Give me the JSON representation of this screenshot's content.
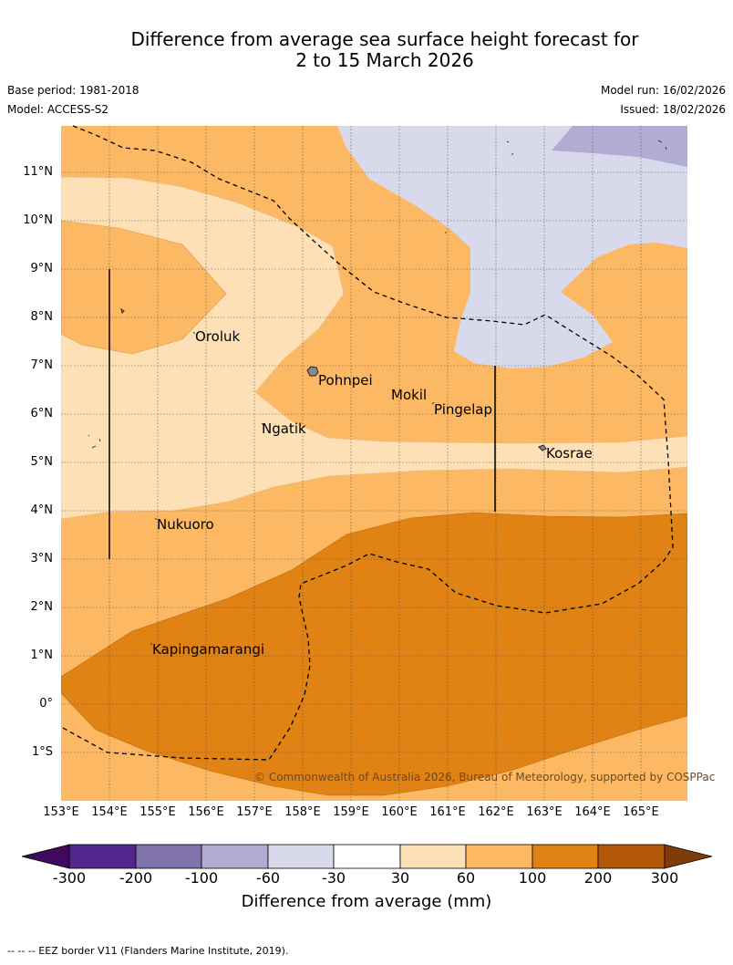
{
  "title_line1": "Difference from average sea surface height forecast for",
  "title_line2": "2 to 15 March 2026",
  "base_period": "Base period: 1981-2018",
  "model": "Model: ACCESS-S2",
  "model_run": "Model run: 16/02/2026",
  "issued": "Issued: 18/02/2026",
  "copyright": "© Commonwealth of Australia 2026, Bureau of Meteorology, supported by COSPPac",
  "lat_labels": [
    "11°N",
    "10°N",
    "9°N",
    "8°N",
    "7°N",
    "6°N",
    "5°N",
    "4°N",
    "3°N",
    "2°N",
    "1°N",
    "0°",
    "1°S"
  ],
  "lon_labels": [
    "153°E",
    "154°E",
    "155°E",
    "156°E",
    "157°E",
    "158°E",
    "159°E",
    "160°E",
    "161°E",
    "162°E",
    "163°E",
    "164°E",
    "165°E"
  ],
  "places": {
    "oroluk": "Oroluk",
    "pohnpei": "Pohnpei",
    "mokil": "Mokil",
    "pingelap": "Pingelap",
    "ngatik": "Ngatik",
    "kosrae": "Kosrae",
    "nukuoro": "Nukuoro",
    "kapingamarangi": "Kapingamarangi"
  },
  "colorbar": {
    "ticks": [
      "-300",
      "-200",
      "-100",
      "-60",
      "-30",
      "30",
      "60",
      "100",
      "200",
      "300"
    ],
    "title": "Difference from average (mm)",
    "colors": [
      "#3f0a5e",
      "#54278f",
      "#8073ac",
      "#b2abd2",
      "#d8daeb",
      "#ffffff",
      "#fee0b6",
      "#fdb863",
      "#e08214",
      "#b35806",
      "#7f3b08"
    ]
  },
  "footnote": "--  --  -- EEZ border V11 (Flanders Marine Institute, 2019)."
}
